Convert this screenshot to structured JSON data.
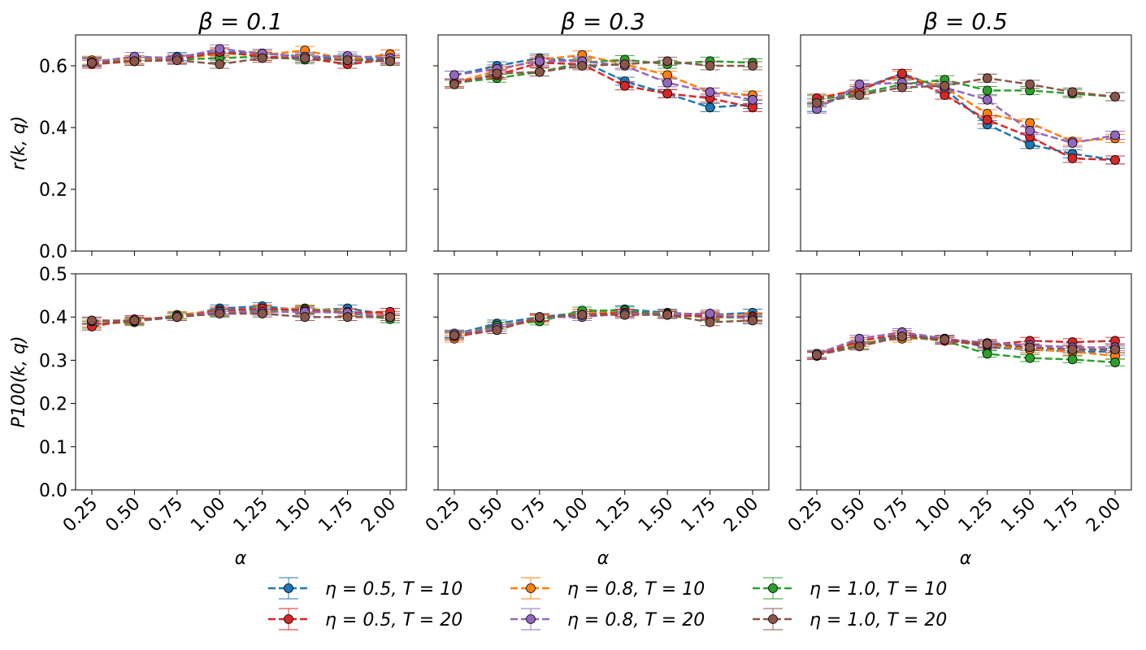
{
  "chart_data": {
    "type": "line",
    "layout": "2x3 grid",
    "row_ylabels": [
      "r(k, q)",
      "P100(k, q)"
    ],
    "column_titles": [
      "β = 0.1",
      "β = 0.3",
      "β = 0.5"
    ],
    "xlabel": "α",
    "categories": [
      "0.25",
      "0.50",
      "0.75",
      "1.00",
      "1.25",
      "1.50",
      "1.75",
      "2.00"
    ],
    "rows": [
      {
        "ylim": [
          0,
          0.7
        ],
        "yticks": [
          "0.0",
          "0.2",
          "0.4",
          "0.6"
        ],
        "ytick_values": [
          0,
          0.2,
          0.4,
          0.6
        ]
      },
      {
        "ylim": [
          0,
          0.5
        ],
        "yticks": [
          "0.0",
          "0.1",
          "0.2",
          "0.3",
          "0.4",
          "0.5"
        ],
        "ytick_values": [
          0,
          0.1,
          0.2,
          0.3,
          0.4,
          0.5
        ]
      }
    ],
    "legend_position": "bottom-center",
    "series_meta": [
      {
        "name": "η = 0.5, T = 10",
        "color": "#1f77b4"
      },
      {
        "name": "η = 0.8, T = 10",
        "color": "#ff7f0e"
      },
      {
        "name": "η = 1.0, T = 10",
        "color": "#2ca02c"
      },
      {
        "name": "η = 0.5, T = 20",
        "color": "#d62728"
      },
      {
        "name": "η = 0.8, T = 20",
        "color": "#9467bd"
      },
      {
        "name": "η = 1.0, T = 20",
        "color": "#8c564b"
      }
    ],
    "legend_order": [
      0,
      3,
      1,
      4,
      2,
      5
    ],
    "panels": [
      {
        "row": 0,
        "col": 0,
        "series": [
          {
            "values": [
              0.615,
              0.62,
              0.63,
              0.645,
              0.64,
              0.63,
              0.625,
              0.62
            ]
          },
          {
            "values": [
              0.618,
              0.62,
              0.62,
              0.64,
              0.635,
              0.65,
              0.62,
              0.638
            ]
          },
          {
            "values": [
              0.612,
              0.615,
              0.62,
              0.625,
              0.63,
              0.62,
              0.62,
              0.615
            ]
          },
          {
            "values": [
              0.605,
              0.615,
              0.62,
              0.645,
              0.63,
              0.625,
              0.605,
              0.62
            ]
          },
          {
            "values": [
              0.612,
              0.63,
              0.625,
              0.655,
              0.64,
              0.63,
              0.632,
              0.625
            ]
          },
          {
            "values": [
              0.61,
              0.615,
              0.618,
              0.605,
              0.625,
              0.625,
              0.618,
              0.615
            ]
          }
        ]
      },
      {
        "row": 0,
        "col": 1,
        "series": [
          {
            "values": [
              0.57,
              0.6,
              0.625,
              0.615,
              0.55,
              0.51,
              0.465,
              0.475
            ]
          },
          {
            "values": [
              0.545,
              0.585,
              0.62,
              0.635,
              0.605,
              0.57,
              0.515,
              0.505
            ]
          },
          {
            "values": [
              0.545,
              0.56,
              0.58,
              0.61,
              0.62,
              0.605,
              0.615,
              0.61
            ]
          },
          {
            "values": [
              0.545,
              0.57,
              0.61,
              0.605,
              0.535,
              0.51,
              0.495,
              0.465
            ]
          },
          {
            "values": [
              0.57,
              0.59,
              0.615,
              0.615,
              0.6,
              0.545,
              0.515,
              0.49
            ]
          },
          {
            "values": [
              0.54,
              0.575,
              0.58,
              0.6,
              0.605,
              0.615,
              0.6,
              0.6
            ]
          }
        ]
      },
      {
        "row": 0,
        "col": 2,
        "series": [
          {
            "values": [
              0.465,
              0.525,
              0.575,
              0.525,
              0.41,
              0.345,
              0.315,
              0.295
            ]
          },
          {
            "values": [
              0.495,
              0.525,
              0.57,
              0.53,
              0.445,
              0.415,
              0.355,
              0.365
            ]
          },
          {
            "values": [
              0.49,
              0.51,
              0.54,
              0.555,
              0.52,
              0.52,
              0.51,
              0.5
            ]
          },
          {
            "values": [
              0.495,
              0.52,
              0.575,
              0.505,
              0.425,
              0.37,
              0.3,
              0.295
            ]
          },
          {
            "values": [
              0.46,
              0.54,
              0.545,
              0.53,
              0.49,
              0.39,
              0.35,
              0.375
            ]
          },
          {
            "values": [
              0.48,
              0.505,
              0.53,
              0.535,
              0.56,
              0.54,
              0.515,
              0.5
            ]
          }
        ]
      },
      {
        "row": 1,
        "col": 0,
        "series": [
          {
            "values": [
              0.385,
              0.39,
              0.4,
              0.42,
              0.425,
              0.415,
              0.42,
              0.405
            ]
          },
          {
            "values": [
              0.385,
              0.388,
              0.405,
              0.415,
              0.418,
              0.42,
              0.412,
              0.405
            ]
          },
          {
            "values": [
              0.382,
              0.39,
              0.403,
              0.41,
              0.415,
              0.418,
              0.41,
              0.395
            ]
          },
          {
            "values": [
              0.378,
              0.395,
              0.4,
              0.415,
              0.42,
              0.415,
              0.41,
              0.412
            ]
          },
          {
            "values": [
              0.39,
              0.392,
              0.4,
              0.412,
              0.412,
              0.412,
              0.41,
              0.4
            ]
          },
          {
            "values": [
              0.392,
              0.392,
              0.4,
              0.408,
              0.408,
              0.4,
              0.4,
              0.4
            ]
          }
        ]
      },
      {
        "row": 1,
        "col": 1,
        "series": [
          {
            "values": [
              0.36,
              0.385,
              0.4,
              0.41,
              0.418,
              0.41,
              0.405,
              0.41
            ]
          },
          {
            "values": [
              0.35,
              0.38,
              0.395,
              0.41,
              0.41,
              0.408,
              0.405,
              0.402
            ]
          },
          {
            "values": [
              0.36,
              0.38,
              0.39,
              0.415,
              0.415,
              0.405,
              0.4,
              0.398
            ]
          },
          {
            "values": [
              0.355,
              0.37,
              0.398,
              0.405,
              0.41,
              0.405,
              0.402,
              0.4
            ]
          },
          {
            "values": [
              0.362,
              0.375,
              0.4,
              0.4,
              0.408,
              0.406,
              0.408,
              0.395
            ]
          },
          {
            "values": [
              0.358,
              0.37,
              0.4,
              0.405,
              0.405,
              0.405,
              0.388,
              0.392
            ]
          }
        ]
      },
      {
        "row": 1,
        "col": 2,
        "series": [
          {
            "values": [
              0.315,
              0.335,
              0.36,
              0.35,
              0.33,
              0.325,
              0.32,
              0.32
            ]
          },
          {
            "values": [
              0.315,
              0.34,
              0.35,
              0.35,
              0.335,
              0.325,
              0.32,
              0.31
            ]
          },
          {
            "values": [
              0.312,
              0.335,
              0.355,
              0.345,
              0.315,
              0.305,
              0.302,
              0.295
            ]
          },
          {
            "values": [
              0.31,
              0.345,
              0.36,
              0.345,
              0.335,
              0.345,
              0.342,
              0.345
            ]
          },
          {
            "values": [
              0.315,
              0.35,
              0.365,
              0.35,
              0.34,
              0.335,
              0.33,
              0.33
            ]
          },
          {
            "values": [
              0.312,
              0.332,
              0.355,
              0.348,
              0.338,
              0.33,
              0.325,
              0.325
            ]
          }
        ]
      }
    ]
  }
}
